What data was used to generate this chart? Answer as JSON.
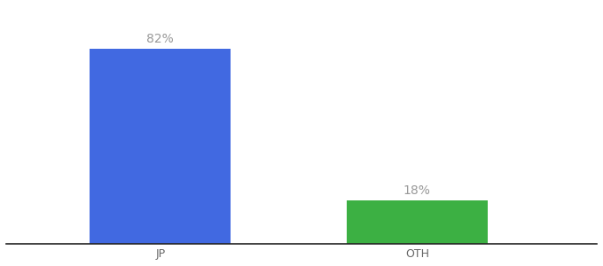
{
  "categories": [
    "JP",
    "OTH"
  ],
  "values": [
    82,
    18
  ],
  "bar_colors": [
    "#4169E1",
    "#3CB043"
  ],
  "bar_labels": [
    "82%",
    "18%"
  ],
  "background_color": "#ffffff",
  "ylim": [
    0,
    100
  ],
  "label_fontsize": 10,
  "tick_fontsize": 9,
  "bar_label_color": "#999999"
}
